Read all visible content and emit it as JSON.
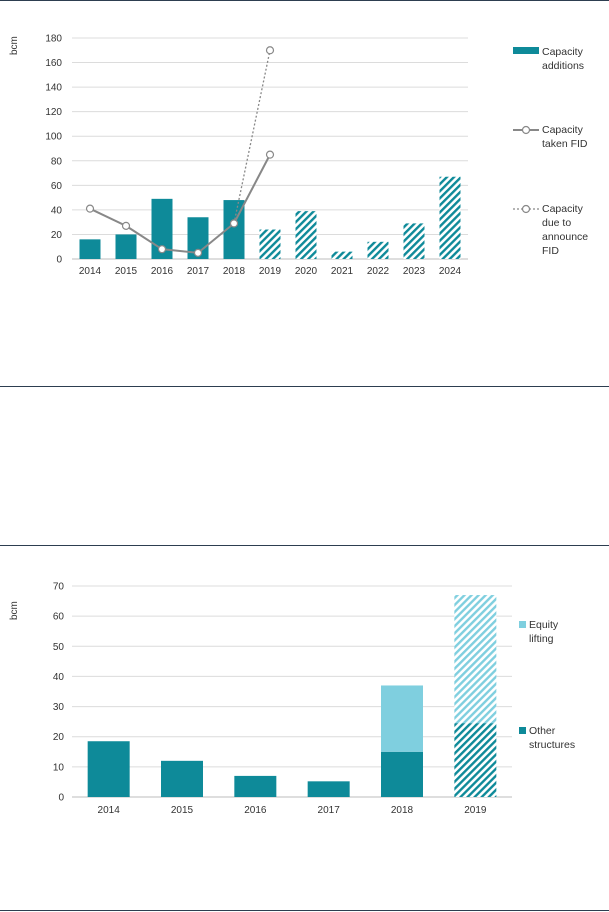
{
  "chart_data": [
    {
      "type": "bar",
      "unit_label": "bcm",
      "ylim": [
        0,
        180
      ],
      "yticks": [
        0,
        20,
        40,
        60,
        80,
        100,
        120,
        140,
        160,
        180
      ],
      "categories": [
        "2014",
        "2015",
        "2016",
        "2017",
        "2018",
        "2019",
        "2020",
        "2021",
        "2022",
        "2023",
        "2024"
      ],
      "grid": true,
      "legend_position": "right",
      "series": [
        {
          "name": "Capacity additions",
          "kind": "bar",
          "color": "#0e8a99",
          "values": [
            16,
            20,
            49,
            34,
            48,
            24,
            39,
            6,
            14,
            29,
            67
          ],
          "hatched": [
            false,
            false,
            false,
            false,
            false,
            true,
            true,
            true,
            true,
            true,
            true
          ]
        },
        {
          "name": "Capacity taken FID",
          "kind": "line",
          "style": "solid",
          "color": "#888888",
          "values": [
            41,
            27,
            8,
            5,
            29,
            85,
            null,
            null,
            null,
            null,
            null
          ]
        },
        {
          "name": "Capacity due to announce FID",
          "kind": "line",
          "style": "dotted",
          "color": "#888888",
          "values": [
            null,
            null,
            null,
            null,
            29,
            170,
            null,
            null,
            null,
            null,
            null
          ]
        }
      ],
      "legend": [
        {
          "kind": "bar",
          "lines": [
            "Capacity",
            "additions"
          ]
        },
        {
          "kind": "line",
          "lines": [
            "Capacity",
            "taken FID"
          ]
        },
        {
          "kind": "dotted",
          "lines": [
            "Capacity",
            "due to",
            "announce",
            "FID"
          ]
        }
      ]
    },
    {
      "type": "bar",
      "stacked": true,
      "unit_label": "bcm",
      "ylim": [
        0,
        70
      ],
      "yticks": [
        0,
        10,
        20,
        30,
        40,
        50,
        60,
        70
      ],
      "categories": [
        "2014",
        "2015",
        "2016",
        "2017",
        "2018",
        "2019"
      ],
      "grid": true,
      "legend_position": "right",
      "series": [
        {
          "name": "Other structures",
          "color": "#0e8a99",
          "values": [
            18.5,
            12,
            7,
            5.2,
            15,
            24.5
          ],
          "hatched": [
            false,
            false,
            false,
            false,
            false,
            true
          ]
        },
        {
          "name": "Equity lifting",
          "color": "#7fcfdf",
          "values": [
            0,
            0,
            0,
            0,
            22,
            42.5
          ],
          "hatched": [
            false,
            false,
            false,
            false,
            false,
            true
          ]
        }
      ],
      "legend": [
        {
          "kind": "light",
          "lines": [
            "Equity",
            "lifting"
          ]
        },
        {
          "kind": "dark",
          "lines": [
            "Other",
            "structures"
          ]
        }
      ]
    }
  ]
}
